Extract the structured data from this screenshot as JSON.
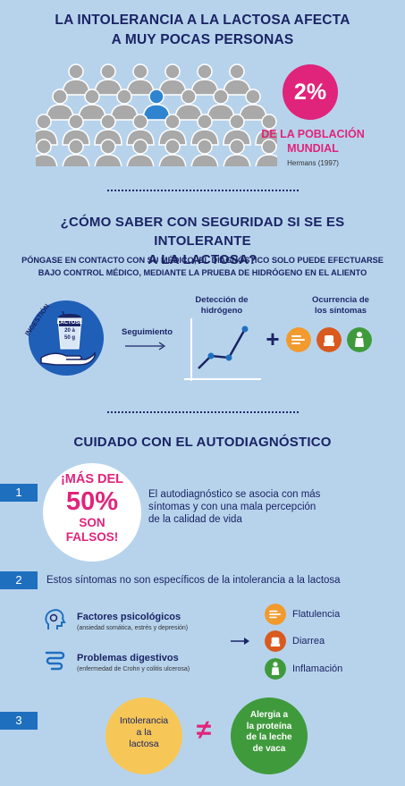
{
  "section1": {
    "title_line1": "LA INTOLERANCIA A LA LACTOSA AFECTA",
    "title_line2": "A MUY POCAS PERSONAS",
    "percent": "2%",
    "percent_label_line1": "DE LA POBLACIÓN",
    "percent_label_line2": "MUNDIAL",
    "citation": "Hermans (1997)"
  },
  "section2": {
    "title_line1": "¿CÓMO SABER CON SEGURIDAD SI SE ES INTOLERANTE",
    "title_line2": "A LA LACTOSA?",
    "subtitle_line1": "PÓNGASE EN CONTACTO CON SU MÉDICO; EL DIAGNÓSTICO SOLO PUEDE EFECTUARSE",
    "subtitle_line2": "BAJO CONTROL MÉDICO, MEDIANTE LA PRUEBA DE HIDRÓGENO EN EL ALIENTO",
    "ingestion_label": "INGESTIÓN",
    "cup_label": "LACTOSE",
    "cup_amount_line1": "20 à",
    "cup_amount_line2": "50 g",
    "follow_label": "Seguimiento",
    "detection_label_line1": "Detección de",
    "detection_label_line2": "hidrógeno",
    "plus": "+",
    "symptoms_label_line1": "Ocurrencia de",
    "symptoms_label_line2": "los síntomas"
  },
  "section3": {
    "title": "CUIDADO CON EL AUTODIAGNÓSTICO",
    "item1_number": "1",
    "big_top": "¡MÁS DEL",
    "big_pct": "50%",
    "big_line3": "SON",
    "big_line4": "FALSOS!",
    "auto_text_line1": "El autodiagnóstico se asocia con más",
    "auto_text_line2": "síntomas y con una mala percepción",
    "auto_text_line3": "de la calidad de vida",
    "item2_number": "2",
    "item2_text": "Estos síntomas no son específicos de la intolerancia a la lactosa",
    "cause1_title": "Factores psicológicos",
    "cause1_sub": "(ansiedad somática, estrés y depresión)",
    "cause2_title": "Problemas digestivos",
    "cause2_sub": "(enfermedad de Crohn y colitis ulcerosa)",
    "symptom1": "Flatulencia",
    "symptom2": "Diarrea",
    "symptom3": "Inflamación",
    "item3_number": "3",
    "lactosa_line1": "Intolerancia",
    "lactosa_line2": "a la",
    "lactosa_line3": "lactosa",
    "neq": "≠",
    "alergia_line1": "Alergia a",
    "alergia_line2": "la proteína",
    "alergia_line3": "de la leche",
    "alergia_line4": "de vaca"
  },
  "colors": {
    "background": "#b7d3ec",
    "navy": "#1a2464",
    "magenta": "#e0247b",
    "blue": "#1f6fbf",
    "orange": "#f29a2e",
    "dark_orange": "#d95a1e",
    "green": "#3f9a3c",
    "yellow": "#f6c657"
  }
}
